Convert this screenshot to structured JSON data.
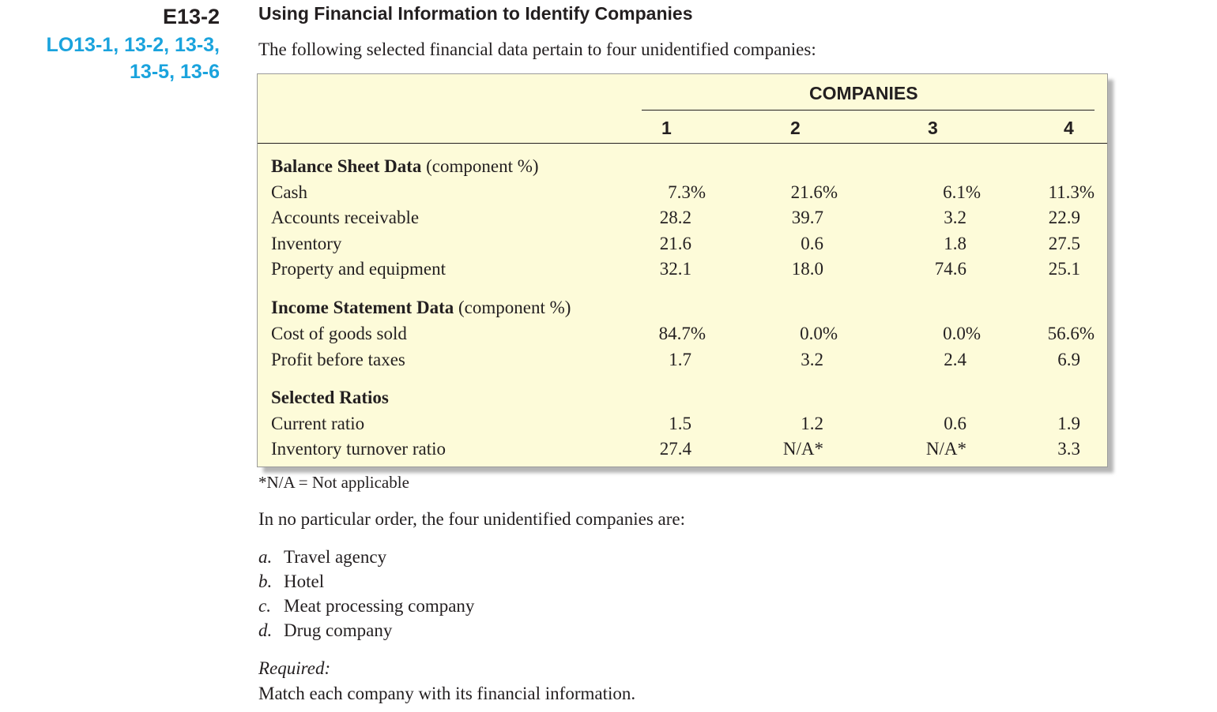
{
  "exercise": {
    "id": "E13-2",
    "learning_objectives": [
      "LO13-1, 13-2, 13-3,",
      "13-5, 13-6"
    ],
    "title": "Using Financial Information to Identify Companies",
    "intro": "The following selected financial data pertain to four unidentified companies:"
  },
  "table": {
    "companies_header": "COMPANIES",
    "columns": [
      "1",
      "2",
      "3",
      "4"
    ],
    "sections": [
      {
        "title": "Balance Sheet Data",
        "subtitle": "(component %)",
        "rows": [
          {
            "label": "Cash",
            "values": [
              "7.3%",
              "21.6%",
              "6.1%",
              "11.3%"
            ]
          },
          {
            "label": "Accounts receivable",
            "values": [
              "28.2",
              "39.7",
              "3.2",
              "22.9"
            ]
          },
          {
            "label": "Inventory",
            "values": [
              "21.6",
              "0.6",
              "1.8",
              "27.5"
            ]
          },
          {
            "label": "Property and equipment",
            "values": [
              "32.1",
              "18.0",
              "74.6",
              "25.1"
            ]
          }
        ]
      },
      {
        "title": "Income Statement Data",
        "subtitle": "(component %)",
        "rows": [
          {
            "label": "Cost of goods sold",
            "values": [
              "84.7%",
              "0.0%",
              "0.0%",
              "56.6%"
            ]
          },
          {
            "label": "Profit before taxes",
            "values": [
              "1.7",
              "3.2",
              "2.4",
              "6.9"
            ]
          }
        ]
      },
      {
        "title": "Selected Ratios",
        "subtitle": "",
        "rows": [
          {
            "label": "Current ratio",
            "values": [
              "1.5",
              "1.2",
              "0.6",
              "1.9"
            ]
          },
          {
            "label": "Inventory turnover ratio",
            "values": [
              "27.4",
              "N/A*",
              "N/A*",
              "3.3"
            ]
          }
        ]
      }
    ],
    "footnote": "*N/A = Not applicable"
  },
  "question": "In no particular order, the four unidentified companies are:",
  "options": [
    {
      "letter": "a.",
      "text": "Travel agency"
    },
    {
      "letter": "b.",
      "text": "Hotel"
    },
    {
      "letter": "c.",
      "text": "Meat processing company"
    },
    {
      "letter": "d.",
      "text": "Drug company"
    }
  ],
  "required": {
    "label": "Required:",
    "text": "Match each company with its financial information."
  }
}
